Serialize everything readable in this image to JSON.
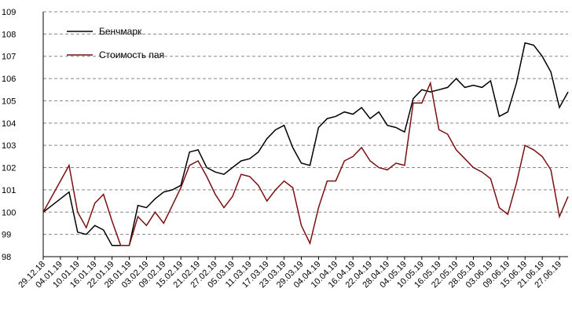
{
  "chart_data": {
    "type": "line",
    "categories": [
      "29.12.18",
      null,
      "04.01.19",
      null,
      "10.01.19",
      null,
      "16.01.19",
      null,
      "22.01.19",
      null,
      "28.01.19",
      null,
      "03.02.19",
      null,
      "09.02.19",
      null,
      "15.02.19",
      null,
      "21.02.19",
      null,
      "27.02.19",
      null,
      "05.03.19",
      null,
      "11.03.19",
      null,
      "17.03.19",
      null,
      "23.03.19",
      null,
      "29.03.19",
      null,
      "04.04.19",
      null,
      "10.04.19",
      null,
      "16.04.19",
      null,
      "22.04.19",
      null,
      "28.04.19",
      null,
      "04.05.19",
      null,
      "10.05.19",
      null,
      "16.05.19",
      null,
      "22.05.19",
      null,
      "28.05.19",
      null,
      "03.06.19",
      null,
      "09.06.19",
      null,
      "15.06.19",
      null,
      "21.06.19",
      null,
      "27.06.19",
      null
    ],
    "series": [
      {
        "name": "Бенчмарк",
        "color": "#000000",
        "values": [
          100.0,
          100.3,
          100.6,
          100.9,
          99.1,
          99.0,
          99.4,
          99.2,
          98.5,
          98.5,
          98.5,
          100.3,
          100.2,
          100.6,
          100.9,
          101.0,
          101.2,
          102.7,
          102.8,
          102.0,
          101.8,
          101.7,
          102.0,
          102.3,
          102.4,
          102.7,
          103.3,
          103.7,
          103.9,
          102.9,
          102.2,
          102.1,
          103.8,
          104.2,
          104.3,
          104.5,
          104.4,
          104.7,
          104.2,
          104.5,
          103.9,
          103.8,
          103.6,
          105.1,
          105.5,
          105.4,
          105.5,
          105.6,
          106.0,
          105.6,
          105.7,
          105.6,
          105.9,
          104.3,
          104.5,
          105.8,
          107.6,
          107.5,
          107.0,
          106.3,
          104.7,
          105.4
        ]
      },
      {
        "name": "Стоимость пая",
        "color": "#7b1010",
        "values": [
          100.0,
          100.7,
          101.4,
          102.1,
          100.0,
          99.3,
          100.4,
          100.8,
          99.6,
          98.5,
          98.5,
          99.8,
          99.4,
          100.0,
          99.5,
          100.3,
          101.1,
          102.1,
          102.3,
          101.6,
          100.8,
          100.2,
          100.7,
          101.7,
          101.6,
          101.2,
          100.5,
          101.0,
          101.4,
          101.1,
          99.4,
          98.6,
          100.2,
          101.4,
          101.4,
          102.3,
          102.5,
          102.9,
          102.3,
          102.0,
          101.9,
          102.2,
          102.1,
          104.9,
          104.9,
          105.8,
          103.7,
          103.5,
          102.8,
          102.4,
          102.0,
          101.8,
          101.5,
          100.2,
          99.9,
          101.3,
          103.0,
          102.8,
          102.5,
          101.9,
          99.8,
          100.7
        ]
      }
    ],
    "ylim": [
      98,
      109
    ],
    "yticks": [
      98,
      99,
      100,
      101,
      102,
      103,
      104,
      105,
      106,
      107,
      108,
      109
    ],
    "grid": true
  }
}
